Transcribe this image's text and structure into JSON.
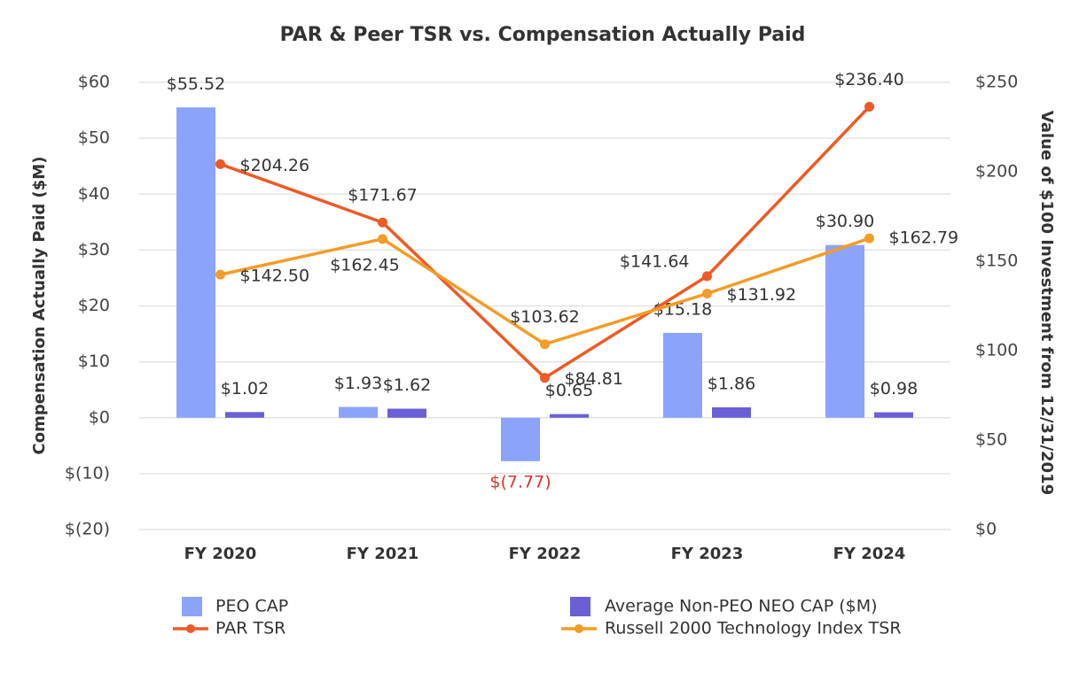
{
  "chart_data": {
    "type": "bar_line",
    "title": "PAR & Peer TSR vs. Compensation Actually Paid",
    "y_label": "Compensation Actually Paid ($M)",
    "y2_label": "Value of $100 Investment from 12/31/2019",
    "categories": [
      "FY 2020",
      "FY 2021",
      "FY 2022",
      "FY 2023",
      "FY 2024"
    ],
    "ylim": [
      -20,
      60
    ],
    "yticks": [
      {
        "value": -20,
        "label": "$(20)"
      },
      {
        "value": -10,
        "label": "$(10)"
      },
      {
        "value": 0,
        "label": "$0"
      },
      {
        "value": 10,
        "label": "$10"
      },
      {
        "value": 20,
        "label": "$20"
      },
      {
        "value": 30,
        "label": "$30"
      },
      {
        "value": 40,
        "label": "$40"
      },
      {
        "value": 50,
        "label": "$50"
      },
      {
        "value": 60,
        "label": "$60"
      }
    ],
    "y2lim": [
      0,
      250
    ],
    "y2ticks": [
      {
        "value": 0,
        "label": "$0"
      },
      {
        "value": 50,
        "label": "$50"
      },
      {
        "value": 100,
        "label": "$100"
      },
      {
        "value": 150,
        "label": "$150"
      },
      {
        "value": 200,
        "label": "$200"
      },
      {
        "value": 250,
        "label": "$250"
      }
    ],
    "grid": true,
    "negative_label_color": "#d9342b",
    "series": [
      {
        "name": "PEO CAP",
        "type": "bar",
        "color": "#8ca3fc",
        "values": [
          55.52,
          1.93,
          -7.77,
          15.18,
          30.9
        ],
        "value_labels": [
          "$55.52",
          "$1.93",
          "$(7.77)",
          "$15.18",
          "$30.90"
        ]
      },
      {
        "name": "Average Non-PEO NEO CAP ($M)",
        "type": "bar",
        "color": "#6a5fd6",
        "values": [
          1.02,
          1.62,
          0.65,
          1.86,
          0.98
        ],
        "value_labels": [
          "$1.02",
          "$1.62",
          "$0.65",
          "$1.86",
          "$0.98"
        ]
      },
      {
        "name": "PAR TSR",
        "type": "line",
        "axis": "y2",
        "color": "#ee5a24",
        "values": [
          204.26,
          171.67,
          84.81,
          141.64,
          236.4
        ],
        "value_labels": [
          "$204.26",
          "$171.67",
          "$84.81",
          "$141.64",
          "$236.40"
        ]
      },
      {
        "name": "Russell 2000 Technology Index TSR",
        "type": "line",
        "axis": "y2",
        "color": "#f39c26",
        "values": [
          142.5,
          162.45,
          103.62,
          131.92,
          162.79
        ],
        "value_labels": [
          "$142.50",
          "$162.45",
          "$103.62",
          "$131.92",
          "$162.79"
        ]
      }
    ]
  }
}
